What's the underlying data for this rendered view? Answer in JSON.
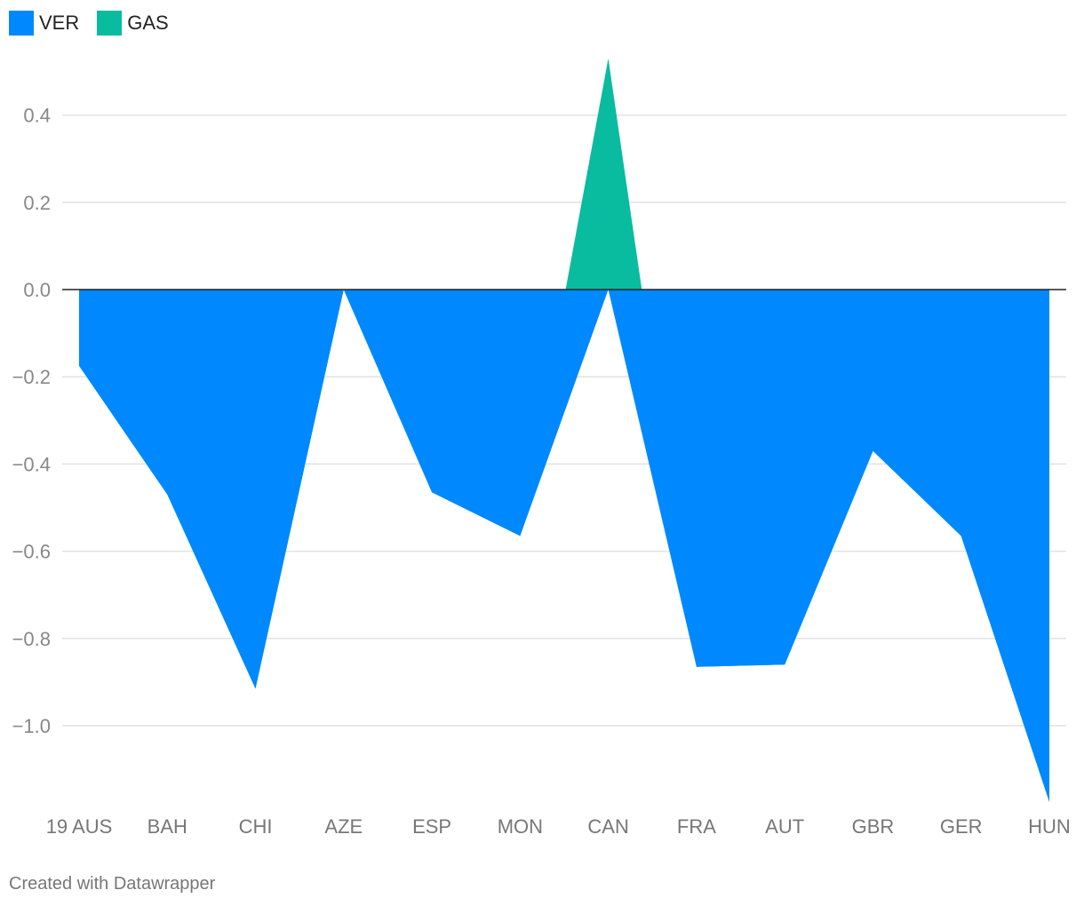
{
  "chart_data": {
    "type": "area",
    "categories": [
      "19 AUS",
      "BAH",
      "CHI",
      "AZE",
      "ESP",
      "MON",
      "CAN",
      "FRA",
      "AUT",
      "GBR",
      "GER",
      "HUN"
    ],
    "series": [
      {
        "name": "VER",
        "color": "#0088ff",
        "values": [
          -0.175,
          -0.47,
          -0.915,
          0.0,
          -0.465,
          -0.565,
          0.0,
          -0.865,
          -0.86,
          -0.37,
          -0.565,
          -1.175
        ]
      },
      {
        "name": "GAS",
        "color": "#09bb9f",
        "values": [
          -0.175,
          -0.47,
          -0.915,
          0.0,
          -0.465,
          -0.565,
          0.53,
          -0.865,
          -0.86,
          -0.37,
          -0.565,
          -1.175
        ]
      }
    ],
    "yticks": [
      "0.4",
      "0.2",
      "0.0",
      "−0.2",
      "−0.4",
      "−0.6",
      "−0.8",
      "−1.0"
    ],
    "ytick_values": [
      0.4,
      0.2,
      0.0,
      -0.2,
      -0.4,
      -0.6,
      -0.8,
      -1.0
    ],
    "ylim": [
      -1.175,
      0.53
    ],
    "grid": true,
    "legend": "top-left"
  },
  "legend": [
    {
      "label": "VER",
      "color": "#0088ff"
    },
    {
      "label": "GAS",
      "color": "#09bb9f"
    }
  ],
  "credit": "Created with Datawrapper"
}
